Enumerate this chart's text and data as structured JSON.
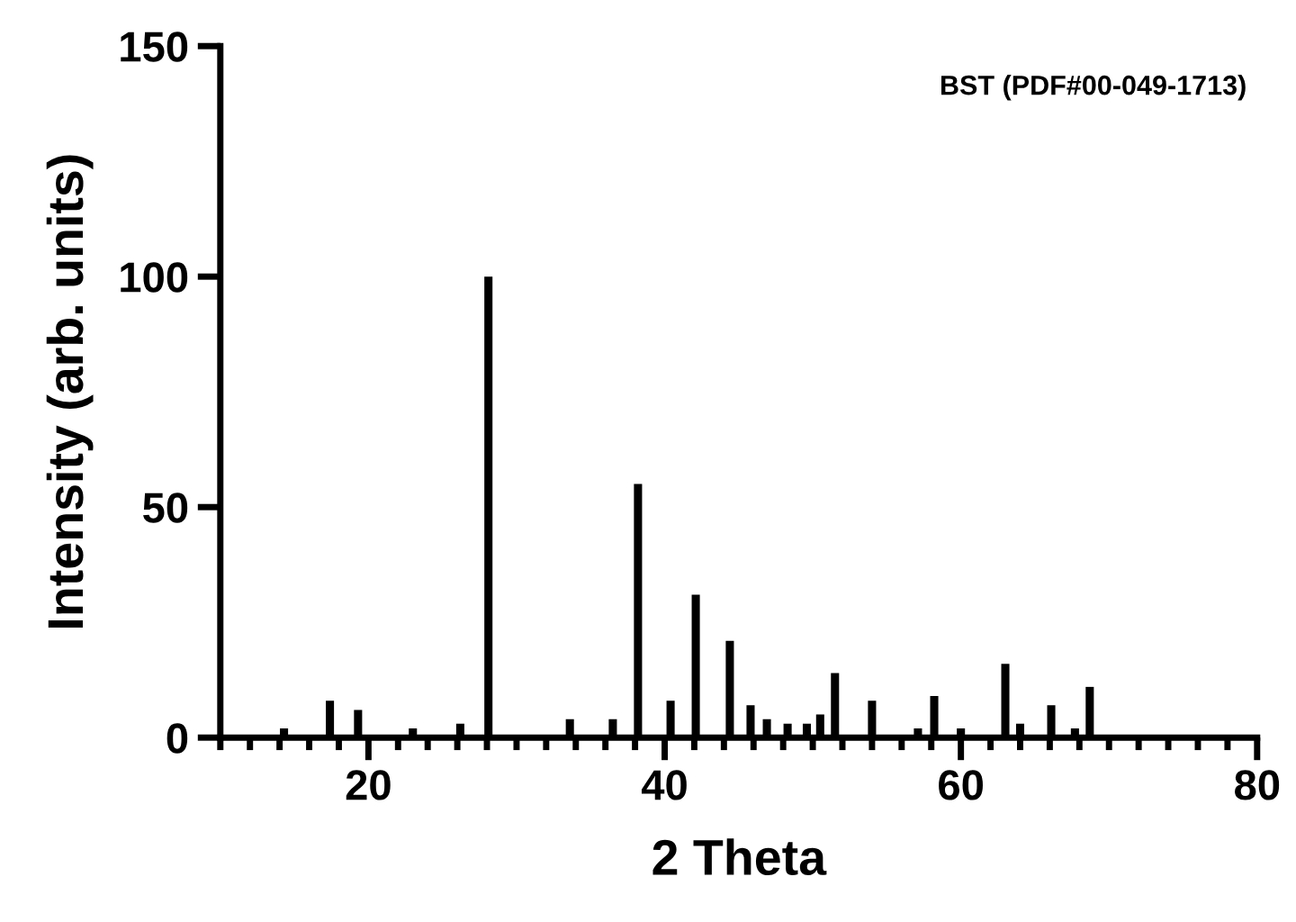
{
  "chart_data": {
    "type": "bar",
    "xlabel": "2 Theta",
    "ylabel": "Intensity (arb. units)",
    "x": [
      14.3,
      17.4,
      19.3,
      23.0,
      26.2,
      28.1,
      33.6,
      36.5,
      38.2,
      40.4,
      42.1,
      44.4,
      45.8,
      46.9,
      48.3,
      49.6,
      50.5,
      51.5,
      54.0,
      57.1,
      58.2,
      60.0,
      63.0,
      64.0,
      66.1,
      67.7,
      68.7
    ],
    "values": [
      2,
      8,
      6,
      2,
      3,
      100,
      4,
      4,
      55,
      8,
      31,
      21,
      7,
      4,
      3,
      3,
      5,
      14,
      8,
      2,
      9,
      2,
      16,
      3,
      7,
      2,
      11
    ],
    "color": "#000000",
    "xlim": [
      10,
      80
    ],
    "xticks": [
      20,
      40,
      60,
      80
    ],
    "ylim": [
      0,
      150
    ],
    "yticks": [
      0,
      50,
      100,
      150
    ],
    "grid": false,
    "legend": false,
    "annotations": [
      "BST (PDF#00-049-1713)"
    ]
  }
}
